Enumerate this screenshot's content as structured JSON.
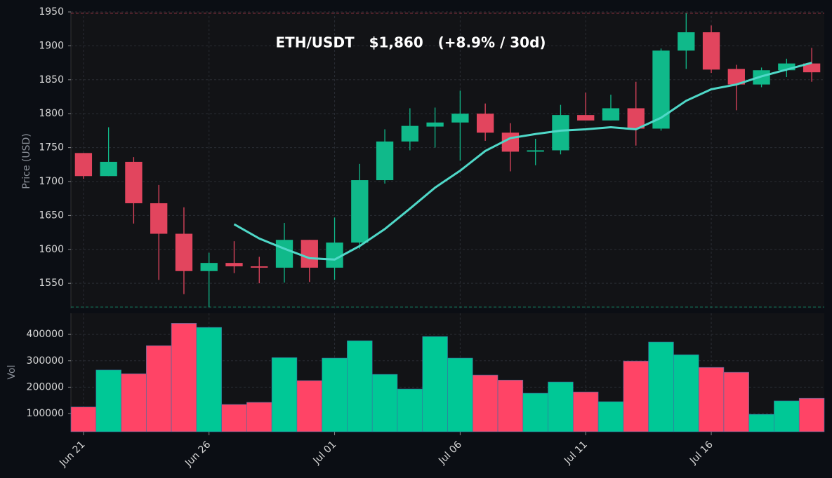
{
  "chart_data": [
    {
      "type": "candlestick",
      "title": "ETH/USDT   $1,860   (+8.9% / 30d)",
      "ylabel": "Price (USD)",
      "open": [
        1742,
        1708,
        1729,
        1668,
        1623,
        1568,
        1580,
        1575,
        1573,
        1614,
        1573,
        1610,
        1702,
        1759,
        1781,
        1787,
        1800,
        1772,
        1744,
        1746,
        1798,
        1790,
        1808,
        1778,
        1893,
        1920,
        1866,
        1843,
        1864,
        1874
      ],
      "high": [
        1742,
        1780,
        1736,
        1695,
        1662,
        1595,
        1612,
        1589,
        1639,
        1614,
        1647,
        1726,
        1777,
        1808,
        1809,
        1834,
        1815,
        1786,
        1763,
        1813,
        1831,
        1828,
        1847,
        1896,
        1948,
        1930,
        1872,
        1868,
        1881,
        1897
      ],
      "low": [
        1704,
        1708,
        1638,
        1555,
        1534,
        1515,
        1565,
        1550,
        1551,
        1552,
        1555,
        1601,
        1697,
        1746,
        1750,
        1731,
        1760,
        1715,
        1724,
        1740,
        1790,
        1790,
        1753,
        1775,
        1866,
        1860,
        1805,
        1839,
        1854,
        1847
      ],
      "close": [
        1708,
        1729,
        1668,
        1623,
        1568,
        1580,
        1575,
        1573,
        1614,
        1573,
        1610,
        1702,
        1759,
        1782,
        1787,
        1800,
        1772,
        1744,
        1746,
        1798,
        1790,
        1808,
        1778,
        1893,
        1920,
        1865,
        1843,
        1864,
        1874,
        1861
      ],
      "ma": {
        "color": "#4fd8c8",
        "values": [
          null,
          null,
          null,
          null,
          null,
          null,
          1637,
          1616,
          1601,
          1587,
          1585,
          1605,
          1630,
          1660,
          1691,
          1716,
          1745,
          1764,
          1770,
          1775,
          1777,
          1780,
          1777,
          1794,
          1819,
          1836,
          1843,
          1855,
          1865,
          1875
        ]
      },
      "up_color": "#10b98a",
      "down_color": "#e2455e",
      "ylim": [
        1513,
        1950
      ],
      "yticks": [
        1550,
        1600,
        1650,
        1700,
        1750,
        1800,
        1850,
        1900,
        1950
      ],
      "grid": true
    },
    {
      "type": "bar",
      "ylabel": "Vol",
      "categories": [
        "Jun 21",
        null,
        null,
        null,
        null,
        "Jun 26",
        null,
        null,
        null,
        null,
        "Jul 01",
        null,
        null,
        null,
        null,
        "Jul 06",
        null,
        null,
        null,
        null,
        "Jul 11",
        null,
        null,
        null,
        null,
        "Jul 16",
        null,
        null,
        null,
        null
      ],
      "values": [
        125000,
        265000,
        251000,
        357500,
        442000,
        426500,
        134500,
        142500,
        312000,
        225000,
        310000,
        376000,
        248500,
        193000,
        392000,
        310000,
        246000,
        227000,
        177000,
        219500,
        182000,
        145000,
        299000,
        371000,
        323000,
        275000,
        256500,
        97000,
        148000,
        158000
      ],
      "up_color": "#00c896",
      "down_color": "#ff4466",
      "ylim": [
        31000,
        480000
      ],
      "yticks": [
        100000,
        200000,
        300000,
        400000
      ],
      "grid": true
    }
  ]
}
